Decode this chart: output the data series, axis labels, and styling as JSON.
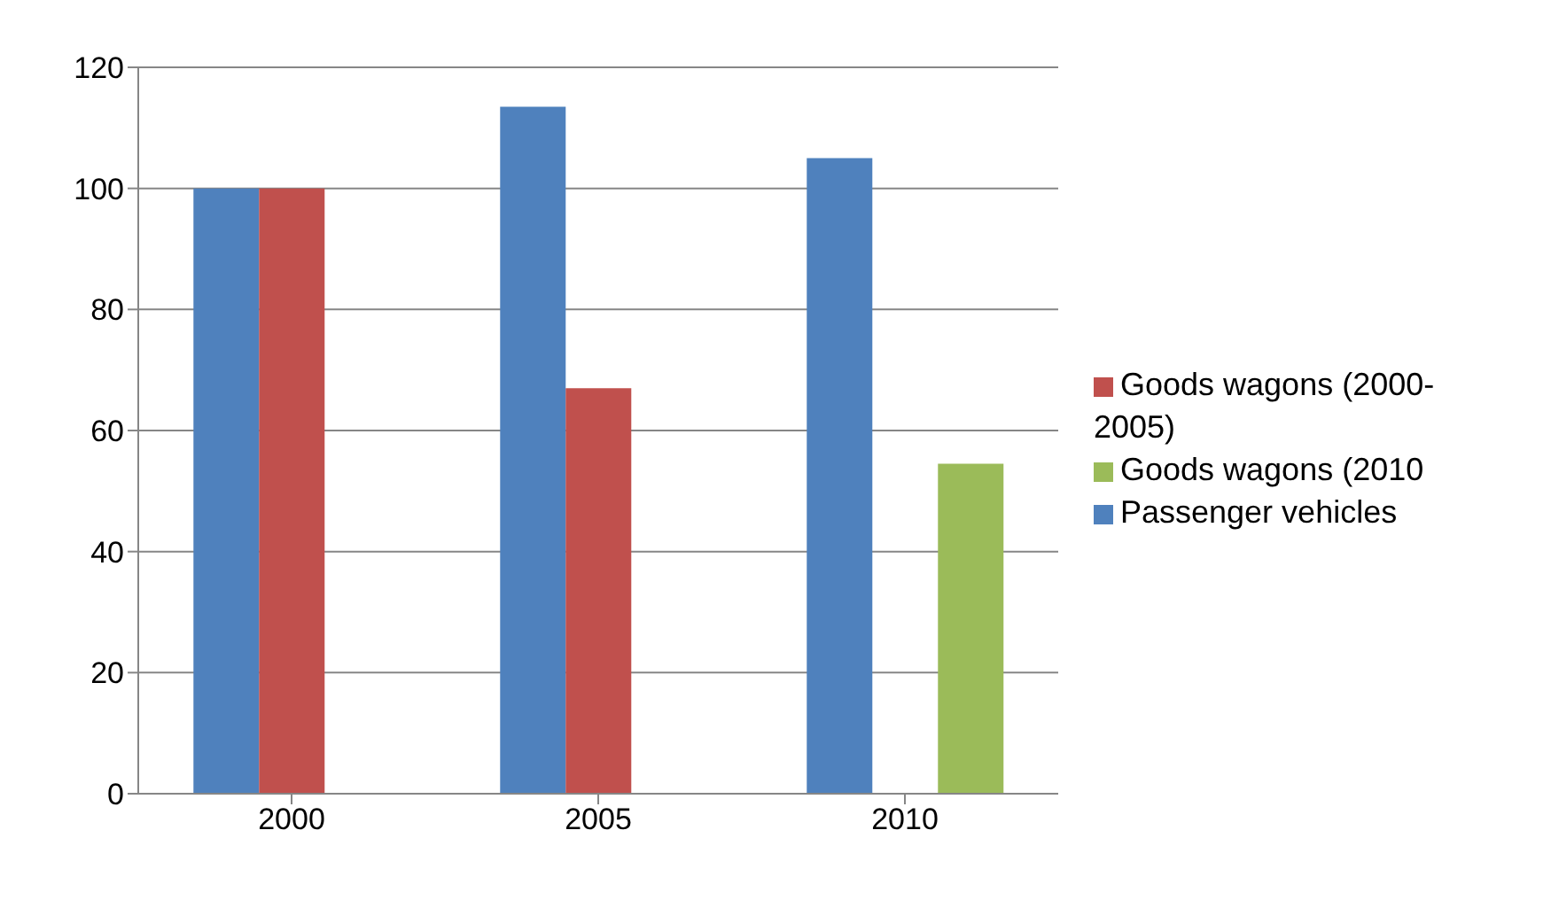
{
  "chart_data": {
    "type": "bar",
    "categories": [
      "2000",
      "2005",
      "2010"
    ],
    "series": [
      {
        "name": "Passenger vehicles",
        "color": "#4f81bd",
        "values": [
          100,
          113.5,
          105
        ]
      },
      {
        "name": "Goods wagons (2000-2005)",
        "color": "#c0504d",
        "values": [
          100,
          67,
          null
        ]
      },
      {
        "name": "Goods wagons (2010",
        "color": "#9bbb59",
        "values": [
          null,
          null,
          54.5
        ]
      }
    ],
    "ylim": [
      0,
      120
    ],
    "yticks": [
      0,
      20,
      40,
      60,
      80,
      100,
      120
    ],
    "grid": "y",
    "legend": "right"
  }
}
